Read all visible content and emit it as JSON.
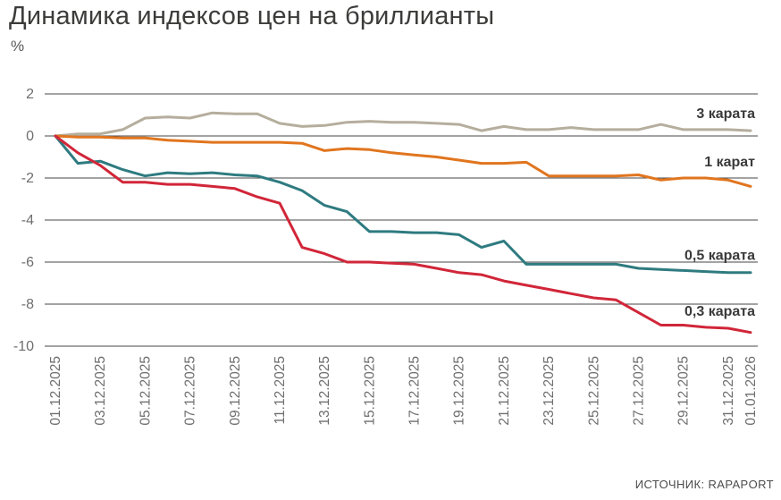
{
  "title": "Динамика индексов цен на бриллианты",
  "ylabel": "%",
  "source": "ИСТОЧНИК: RAPAPORT",
  "chart_data": {
    "type": "line",
    "title": "Динамика индексов цен на бриллианты",
    "ylabel": "%",
    "ylim": [
      -10,
      2
    ],
    "yticks": [
      2,
      0,
      -2,
      -4,
      -6,
      -8,
      -10
    ],
    "grid": true,
    "grid_color": "#474747",
    "axis_color": "#6e6e6e",
    "label_color": "#3a3a3a",
    "legend_position": "inline-right",
    "x_tick_labels": [
      "01.12.2025",
      "03.12.2025",
      "05.12.2025",
      "07.12.2025",
      "09.12.2025",
      "11.12.2025",
      "13.12.2025",
      "15.12.2025",
      "17.12.2025",
      "19.12.2025",
      "21.12.2025",
      "23.12.2025",
      "25.12.2025",
      "27.12.2025",
      "29.12.2025",
      "31.12.2025",
      "01.01.2026"
    ],
    "x_tick_days": [
      0,
      2,
      4,
      6,
      8,
      10,
      12,
      14,
      16,
      18,
      20,
      22,
      24,
      26,
      28,
      30,
      31
    ],
    "series": [
      {
        "name": "3 карата",
        "color": "#b5ae9d",
        "values": [
          0,
          0.1,
          0.1,
          0.3,
          0.85,
          0.9,
          0.85,
          1.1,
          1.05,
          1.05,
          0.6,
          0.45,
          0.5,
          0.65,
          0.7,
          0.65,
          0.65,
          0.6,
          0.55,
          0.25,
          0.45,
          0.3,
          0.3,
          0.4,
          0.3,
          0.3,
          0.3,
          0.55,
          0.3,
          0.3,
          0.3,
          0.25
        ]
      },
      {
        "name": "1 карат",
        "color": "#e1751e",
        "values": [
          0,
          -0.05,
          -0.05,
          -0.1,
          -0.1,
          -0.2,
          -0.25,
          -0.3,
          -0.3,
          -0.3,
          -0.3,
          -0.35,
          -0.7,
          -0.6,
          -0.65,
          -0.8,
          -0.9,
          -1.0,
          -1.15,
          -1.3,
          -1.3,
          -1.25,
          -1.9,
          -1.9,
          -1.9,
          -1.9,
          -1.85,
          -2.1,
          -2.0,
          -2.0,
          -2.1,
          -2.4
        ]
      },
      {
        "name": "0,5 карата",
        "color": "#2e7b80",
        "values": [
          0,
          -1.3,
          -1.2,
          -1.6,
          -1.9,
          -1.75,
          -1.8,
          -1.75,
          -1.85,
          -1.9,
          -2.2,
          -2.6,
          -3.3,
          -3.6,
          -4.55,
          -4.55,
          -4.6,
          -4.6,
          -4.7,
          -5.3,
          -5.0,
          -6.1,
          -6.1,
          -6.1,
          -6.1,
          -6.1,
          -6.3,
          -6.35,
          -6.4,
          -6.45,
          -6.5,
          -6.5
        ]
      },
      {
        "name": "0,3 карата",
        "color": "#d12639",
        "values": [
          0,
          -0.8,
          -1.4,
          -2.2,
          -2.2,
          -2.3,
          -2.3,
          -2.4,
          -2.5,
          -2.9,
          -3.2,
          -5.3,
          -5.6,
          -6.0,
          -6.0,
          -6.05,
          -6.1,
          -6.3,
          -6.5,
          -6.6,
          -6.9,
          -7.1,
          -7.3,
          -7.5,
          -7.7,
          -7.8,
          -8.4,
          -9.0,
          -9.0,
          -9.1,
          -9.15,
          -9.35
        ]
      }
    ]
  }
}
